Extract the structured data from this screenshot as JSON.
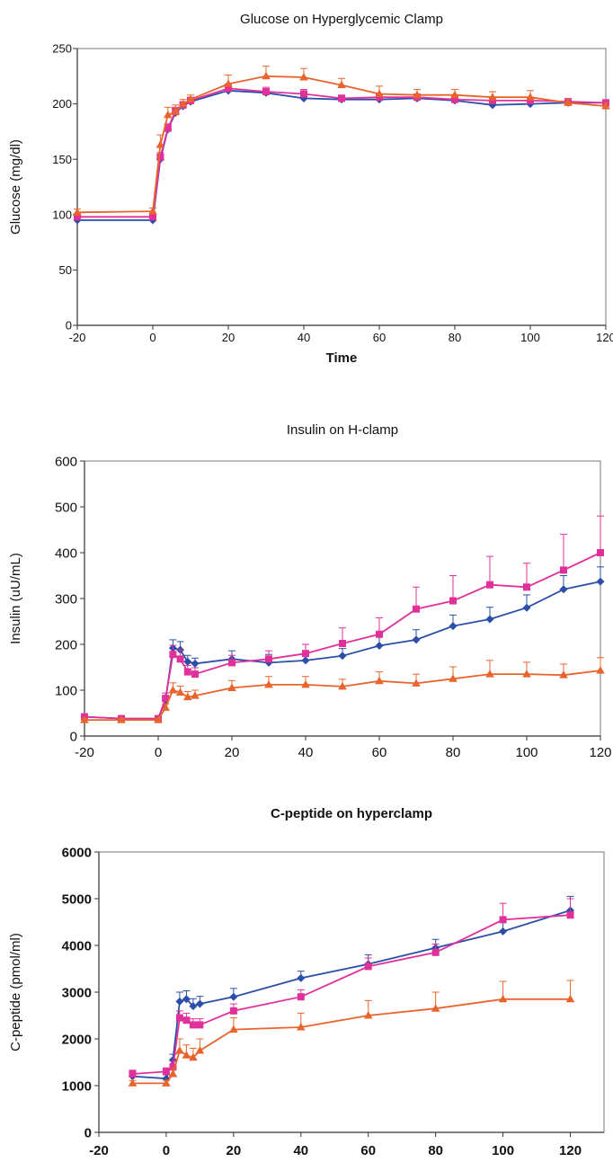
{
  "chart_data": [
    {
      "type": "line",
      "title": "Glucose on Hyperglycemic Clamp",
      "xlabel": "Time",
      "ylabel": "Glucose (mg/dl)",
      "xlim": [
        -20,
        120
      ],
      "ylim": [
        0,
        250
      ],
      "x_ticks": [
        "-20",
        "0",
        "20",
        "40",
        "60",
        "80",
        "100",
        "120"
      ],
      "y_ticks": [
        "0",
        "50",
        "100",
        "150",
        "200",
        "250"
      ],
      "grid": false,
      "legend": "none",
      "series": [
        {
          "color": "#2B4FA8",
          "marker": "diamond",
          "x": [
            -20,
            0,
            2,
            4,
            6,
            8,
            10,
            20,
            30,
            40,
            50,
            60,
            70,
            80,
            90,
            100,
            110,
            120
          ],
          "y": [
            95,
            95,
            150,
            177,
            192,
            198,
            202,
            212,
            210,
            205,
            204,
            204,
            205,
            203,
            199,
            200,
            201,
            201
          ],
          "err": [
            0,
            0,
            4,
            4,
            4,
            3,
            3,
            3,
            3,
            3,
            3,
            3,
            3,
            3,
            3,
            3,
            2,
            2
          ]
        },
        {
          "color": "#E0309A",
          "marker": "square",
          "x": [
            -20,
            0,
            2,
            4,
            6,
            8,
            10,
            20,
            30,
            40,
            50,
            60,
            70,
            80,
            90,
            100,
            110,
            120
          ],
          "y": [
            98,
            98,
            152,
            178,
            193,
            199,
            203,
            214,
            211,
            209,
            205,
            206,
            206,
            204,
            203,
            203,
            202,
            201
          ],
          "err": [
            0,
            0,
            4,
            4,
            4,
            3,
            3,
            4,
            4,
            4,
            3,
            3,
            3,
            3,
            3,
            3,
            2,
            2
          ]
        },
        {
          "color": "#E8642C",
          "marker": "triangle",
          "x": [
            -20,
            0,
            2,
            4,
            6,
            8,
            10,
            20,
            30,
            40,
            50,
            60,
            70,
            80,
            90,
            100,
            110,
            120
          ],
          "y": [
            102,
            103,
            163,
            190,
            193,
            200,
            204,
            218,
            225,
            224,
            217,
            209,
            208,
            208,
            206,
            206,
            201,
            198
          ],
          "err": [
            3,
            3,
            9,
            7,
            6,
            4,
            4,
            8,
            9,
            8,
            6,
            7,
            5,
            5,
            5,
            6,
            3,
            3
          ]
        }
      ]
    },
    {
      "type": "line",
      "title": "Insulin on H-clamp",
      "xlabel": "",
      "ylabel": "Insulin (uU/mL)",
      "xlim": [
        -20,
        120
      ],
      "ylim": [
        0,
        600
      ],
      "x_ticks": [
        "-20",
        "0",
        "20",
        "40",
        "60",
        "80",
        "100",
        "120"
      ],
      "y_ticks": [
        "0",
        "100",
        "200",
        "300",
        "400",
        "500",
        "600"
      ],
      "grid": false,
      "legend": "none",
      "series": [
        {
          "color": "#2B4FA8",
          "marker": "diamond",
          "x": [
            -20,
            -10,
            0,
            2,
            4,
            6,
            8,
            10,
            20,
            30,
            40,
            50,
            60,
            70,
            80,
            90,
            100,
            110,
            120
          ],
          "y": [
            42,
            38,
            38,
            78,
            192,
            188,
            162,
            158,
            168,
            160,
            165,
            175,
            197,
            210,
            240,
            255,
            280,
            320,
            337
          ],
          "err": [
            4,
            4,
            4,
            10,
            18,
            18,
            14,
            12,
            18,
            18,
            16,
            16,
            20,
            22,
            24,
            26,
            28,
            30,
            32
          ]
        },
        {
          "color": "#E0309A",
          "marker": "square",
          "x": [
            -20,
            -10,
            0,
            2,
            4,
            6,
            8,
            10,
            20,
            30,
            40,
            50,
            60,
            70,
            80,
            90,
            100,
            110,
            120
          ],
          "y": [
            42,
            38,
            38,
            82,
            178,
            168,
            140,
            135,
            160,
            168,
            180,
            202,
            222,
            277,
            295,
            330,
            325,
            362,
            400
          ],
          "err": [
            4,
            4,
            4,
            12,
            20,
            20,
            14,
            14,
            16,
            18,
            20,
            34,
            36,
            48,
            55,
            62,
            52,
            78,
            80
          ]
        },
        {
          "color": "#E8642C",
          "marker": "triangle",
          "x": [
            -20,
            -10,
            0,
            2,
            4,
            6,
            8,
            10,
            20,
            30,
            40,
            50,
            60,
            70,
            80,
            90,
            100,
            110,
            120
          ],
          "y": [
            35,
            35,
            35,
            62,
            100,
            95,
            85,
            88,
            105,
            112,
            112,
            108,
            120,
            115,
            125,
            135,
            135,
            133,
            143
          ],
          "err": [
            3,
            3,
            3,
            8,
            16,
            14,
            12,
            12,
            16,
            18,
            18,
            16,
            20,
            20,
            26,
            30,
            26,
            24,
            28
          ]
        }
      ]
    },
    {
      "type": "line",
      "title": "C-peptide on hyperclamp",
      "xlabel": "",
      "ylabel": "C-peptide (pmol/ml)",
      "xlim": [
        -20,
        130
      ],
      "ylim": [
        0,
        6000
      ],
      "x_ticks": [
        "-20",
        "0",
        "20",
        "40",
        "60",
        "80",
        "100",
        "120"
      ],
      "y_ticks": [
        "0",
        "1000",
        "2000",
        "3000",
        "4000",
        "5000",
        "6000"
      ],
      "grid": false,
      "legend": "none",
      "series": [
        {
          "color": "#2B4FA8",
          "marker": "diamond",
          "x": [
            -10,
            0,
            2,
            4,
            6,
            8,
            10,
            20,
            40,
            60,
            80,
            100,
            120
          ],
          "y": [
            1200,
            1150,
            1550,
            2800,
            2850,
            2700,
            2750,
            2900,
            3300,
            3600,
            3950,
            4300,
            4750
          ],
          "err": [
            80,
            80,
            120,
            200,
            180,
            160,
            160,
            180,
            150,
            200,
            180,
            200,
            300
          ]
        },
        {
          "color": "#E0309A",
          "marker": "square",
          "x": [
            -10,
            0,
            2,
            4,
            6,
            8,
            10,
            20,
            40,
            60,
            80,
            100,
            120
          ],
          "y": [
            1250,
            1300,
            1400,
            2450,
            2400,
            2300,
            2300,
            2600,
            2900,
            3550,
            3850,
            4550,
            4650
          ],
          "err": [
            80,
            80,
            120,
            150,
            150,
            130,
            130,
            150,
            150,
            180,
            180,
            350,
            350
          ]
        },
        {
          "color": "#E8642C",
          "marker": "triangle",
          "x": [
            -10,
            0,
            2,
            4,
            6,
            8,
            10,
            20,
            40,
            60,
            80,
            100,
            120
          ],
          "y": [
            1050,
            1050,
            1250,
            1750,
            1650,
            1600,
            1750,
            2200,
            2250,
            2500,
            2650,
            2850,
            2850
          ],
          "err": [
            60,
            60,
            120,
            250,
            220,
            200,
            250,
            250,
            300,
            320,
            350,
            380,
            400
          ]
        }
      ]
    }
  ]
}
